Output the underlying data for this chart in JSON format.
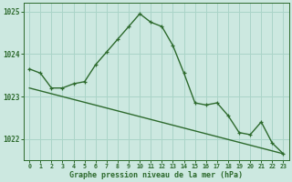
{
  "x": [
    0,
    1,
    2,
    3,
    4,
    5,
    6,
    7,
    8,
    9,
    10,
    11,
    12,
    13,
    14,
    15,
    16,
    17,
    18,
    19,
    20,
    21,
    22,
    23
  ],
  "y_main": [
    1023.65,
    1023.55,
    1023.2,
    1023.2,
    1023.3,
    1023.35,
    1023.75,
    1024.05,
    1024.35,
    1024.65,
    1024.95,
    1024.75,
    1024.65,
    1024.2,
    1023.55,
    1022.85,
    1022.8,
    1022.85,
    1022.55,
    1022.15,
    1022.1,
    1022.4,
    1021.9,
    1021.65
  ],
  "trend_x": [
    0,
    23
  ],
  "trend_y": [
    1023.2,
    1021.65
  ],
  "line_color": "#2d6a2d",
  "bg_color": "#cce8e0",
  "grid_color": "#aad4c8",
  "xlabel": "Graphe pression niveau de la mer (hPa)",
  "ylim": [
    1021.5,
    1025.2
  ],
  "yticks": [
    1022,
    1023,
    1024,
    1025
  ],
  "xticks": [
    0,
    1,
    2,
    3,
    4,
    5,
    6,
    7,
    8,
    9,
    10,
    11,
    12,
    13,
    14,
    15,
    16,
    17,
    18,
    19,
    20,
    21,
    22,
    23
  ]
}
